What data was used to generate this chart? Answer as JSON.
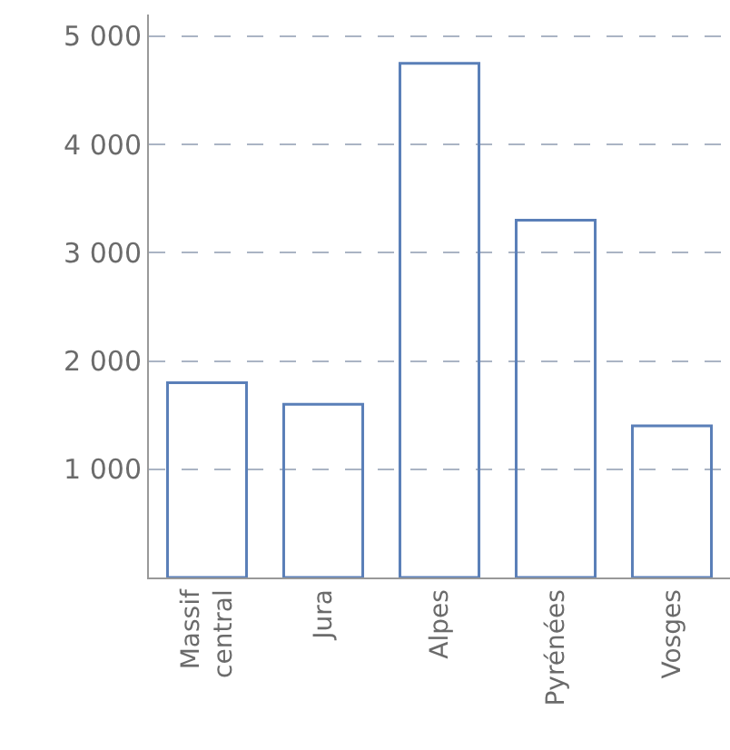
{
  "chart_data": {
    "type": "bar",
    "categories": [
      "Massif central",
      "Jura",
      "Alpes",
      "Pyrénées",
      "Vosges"
    ],
    "values": [
      1800,
      1600,
      4750,
      3300,
      1400
    ],
    "color": "#5a7fb8",
    "ylim": [
      0,
      5200
    ],
    "yticks": [
      {
        "value": 1000,
        "label": "1 000"
      },
      {
        "value": 2000,
        "label": "2 000"
      },
      {
        "value": 3000,
        "label": "3 000"
      },
      {
        "value": 4000,
        "label": "4 000"
      },
      {
        "value": 5000,
        "label": "5 000"
      }
    ],
    "grid": "y"
  }
}
